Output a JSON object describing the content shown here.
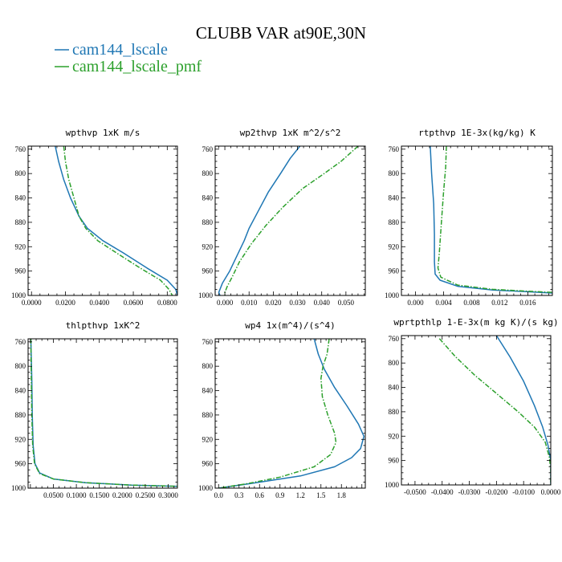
{
  "figure": {
    "title": "CLUBB VAR at90E,30N",
    "legend": [
      {
        "label": "cam144_lscale",
        "color": "#1f77b4",
        "dash": "solid"
      },
      {
        "label": "cam144_lscale_pmf",
        "color": "#2ca02c",
        "dash": "dashdot"
      }
    ]
  },
  "chart_data": [
    {
      "type": "line",
      "title": "wpthvp  1xK m/s",
      "xlim": [
        -0.002,
        0.086
      ],
      "ylim": [
        1000,
        755
      ],
      "y_reversed": true,
      "xticks": [
        0,
        0.02,
        0.04,
        0.06,
        0.08
      ],
      "xtick_labels": [
        "0.0000",
        "0.0200",
        "0.0400",
        "0.0600",
        "0.0800"
      ],
      "yticks": [
        760,
        800,
        840,
        880,
        920,
        960,
        1000
      ],
      "series": [
        {
          "name": "cam144_lscale",
          "points": [
            [
              0.014,
              755
            ],
            [
              0.016,
              780
            ],
            [
              0.019,
              810
            ],
            [
              0.023,
              840
            ],
            [
              0.028,
              870
            ],
            [
              0.033,
              890
            ],
            [
              0.042,
              910
            ],
            [
              0.054,
              930
            ],
            [
              0.068,
              955
            ],
            [
              0.08,
              975
            ],
            [
              0.085,
              990
            ],
            [
              0.086,
              1000
            ]
          ]
        },
        {
          "name": "cam144_lscale_pmf",
          "points": [
            [
              0.019,
              755
            ],
            [
              0.02,
              780
            ],
            [
              0.022,
              810
            ],
            [
              0.025,
              840
            ],
            [
              0.028,
              870
            ],
            [
              0.032,
              890
            ],
            [
              0.039,
              910
            ],
            [
              0.05,
              930
            ],
            [
              0.064,
              955
            ],
            [
              0.076,
              975
            ],
            [
              0.081,
              990
            ],
            [
              0.083,
              1000
            ]
          ]
        }
      ]
    },
    {
      "type": "line",
      "title": "wp2thvp  1xK m^2/s^2",
      "xlim": [
        -0.004,
        0.058
      ],
      "ylim": [
        1000,
        755
      ],
      "y_reversed": true,
      "xticks": [
        0,
        0.01,
        0.02,
        0.03,
        0.04,
        0.05
      ],
      "xtick_labels": [
        "0.000",
        "0.010",
        "0.020",
        "0.030",
        "0.040",
        "0.050"
      ],
      "yticks": [
        760,
        800,
        840,
        880,
        920,
        960,
        1000
      ],
      "series": [
        {
          "name": "cam144_lscale",
          "points": [
            [
              0.031,
              755
            ],
            [
              0.027,
              775
            ],
            [
              0.023,
              800
            ],
            [
              0.018,
              830
            ],
            [
              0.014,
              860
            ],
            [
              0.01,
              890
            ],
            [
              0.008,
              910
            ],
            [
              0.005,
              935
            ],
            [
              0.002,
              960
            ],
            [
              -0.001,
              980
            ],
            [
              -0.0025,
              995
            ],
            [
              -0.002,
              1000
            ]
          ]
        },
        {
          "name": "cam144_lscale_pmf",
          "points": [
            [
              0.055,
              755
            ],
            [
              0.048,
              780
            ],
            [
              0.041,
              800
            ],
            [
              0.032,
              825
            ],
            [
              0.024,
              855
            ],
            [
              0.017,
              885
            ],
            [
              0.011,
              915
            ],
            [
              0.006,
              945
            ],
            [
              0.003,
              970
            ],
            [
              0.001,
              985
            ],
            [
              0.0,
              995
            ],
            [
              0.0,
              1000
            ]
          ]
        }
      ]
    },
    {
      "type": "line",
      "title": "rtpthvp  1E-3x(kg/kg) K",
      "xlim": [
        -0.002,
        0.0195
      ],
      "ylim": [
        1000,
        755
      ],
      "y_reversed": true,
      "xticks": [
        0,
        0.004,
        0.008,
        0.012,
        0.016
      ],
      "xtick_labels": [
        "0.000",
        "0.004",
        "0.008",
        "0.012",
        "0.016"
      ],
      "yticks": [
        760,
        800,
        840,
        880,
        920,
        960,
        1000
      ],
      "series": [
        {
          "name": "cam144_lscale",
          "points": [
            [
              0.0021,
              755
            ],
            [
              0.0023,
              800
            ],
            [
              0.0026,
              850
            ],
            [
              0.0027,
              900
            ],
            [
              0.0027,
              945
            ],
            [
              0.0028,
              965
            ],
            [
              0.0035,
              975
            ],
            [
              0.006,
              985
            ],
            [
              0.011,
              991
            ],
            [
              0.016,
              994
            ],
            [
              0.0195,
              996
            ]
          ]
        },
        {
          "name": "cam144_lscale_pmf",
          "points": [
            [
              0.0044,
              755
            ],
            [
              0.0043,
              790
            ],
            [
              0.004,
              830
            ],
            [
              0.0037,
              880
            ],
            [
              0.0034,
              930
            ],
            [
              0.0032,
              955
            ],
            [
              0.0036,
              970
            ],
            [
              0.006,
              983
            ],
            [
              0.011,
              990
            ],
            [
              0.016,
              993
            ],
            [
              0.0195,
              995
            ]
          ]
        }
      ]
    },
    {
      "type": "line",
      "title": "thlpthvp  1xK^2",
      "xlim": [
        -0.005,
        0.32
      ],
      "ylim": [
        1000,
        755
      ],
      "y_reversed": true,
      "xticks": [
        0.05,
        0.1,
        0.15,
        0.2,
        0.25,
        0.3
      ],
      "xtick_labels": [
        "0.0500",
        "0.1000",
        "0.1500",
        "0.2000",
        "0.2500",
        "0.3000"
      ],
      "yticks": [
        760,
        800,
        840,
        880,
        920,
        960,
        1000
      ],
      "series": [
        {
          "name": "cam144_lscale",
          "points": [
            [
              0.001,
              755
            ],
            [
              0.003,
              820
            ],
            [
              0.004,
              880
            ],
            [
              0.006,
              930
            ],
            [
              0.01,
              960
            ],
            [
              0.02,
              975
            ],
            [
              0.05,
              985
            ],
            [
              0.12,
              991
            ],
            [
              0.22,
              995
            ],
            [
              0.32,
              997
            ]
          ]
        },
        {
          "name": "cam144_lscale_pmf",
          "points": [
            [
              0.001,
              755
            ],
            [
              0.002,
              820
            ],
            [
              0.003,
              880
            ],
            [
              0.005,
              930
            ],
            [
              0.009,
              960
            ],
            [
              0.02,
              976
            ],
            [
              0.05,
              985
            ],
            [
              0.12,
              991
            ],
            [
              0.22,
              995
            ],
            [
              0.32,
              997
            ]
          ]
        }
      ]
    },
    {
      "type": "line",
      "title": "wp4  1x(m^4)/(s^4)",
      "xlim": [
        -0.05,
        2.15
      ],
      "ylim": [
        1000,
        755
      ],
      "y_reversed": true,
      "xticks": [
        0,
        0.3,
        0.6,
        0.9,
        1.2,
        1.5,
        1.8
      ],
      "xtick_labels": [
        "0.0",
        "0.3",
        "0.6",
        "0.9",
        "1.2",
        "1.5",
        "1.8"
      ],
      "yticks": [
        760,
        800,
        840,
        880,
        920,
        960,
        1000
      ],
      "series": [
        {
          "name": "cam144_lscale",
          "points": [
            [
              1.4,
              755
            ],
            [
              1.46,
              780
            ],
            [
              1.55,
              805
            ],
            [
              1.7,
              835
            ],
            [
              1.88,
              865
            ],
            [
              2.05,
              895
            ],
            [
              2.13,
              915
            ],
            [
              2.08,
              935
            ],
            [
              1.95,
              950
            ],
            [
              1.7,
              965
            ],
            [
              1.2,
              980
            ],
            [
              0.5,
              992
            ],
            [
              0.0,
              1000
            ]
          ]
        },
        {
          "name": "cam144_lscale_pmf",
          "points": [
            [
              1.62,
              755
            ],
            [
              1.59,
              780
            ],
            [
              1.53,
              800
            ],
            [
              1.5,
              820
            ],
            [
              1.52,
              850
            ],
            [
              1.6,
              880
            ],
            [
              1.7,
              910
            ],
            [
              1.72,
              925
            ],
            [
              1.64,
              945
            ],
            [
              1.4,
              965
            ],
            [
              0.9,
              982
            ],
            [
              0.4,
              993
            ],
            [
              0.0,
              1000
            ]
          ]
        }
      ]
    },
    {
      "type": "line",
      "title": "wprtpthlp  1-E-3x(m kg K)/(s kg)",
      "xlim": [
        -0.055,
        0.0
      ],
      "ylim": [
        1000,
        755
      ],
      "y_reversed": true,
      "xticks": [
        -0.05,
        -0.04,
        -0.03,
        -0.02,
        -0.01,
        0.0
      ],
      "xtick_labels": [
        "-0.0500",
        "-0.0400",
        "-0.0300",
        "-0.0200",
        "-0.0100",
        "0.0000"
      ],
      "yticks": [
        760,
        800,
        840,
        880,
        920,
        960,
        1000
      ],
      "series": [
        {
          "name": "cam144_lscale",
          "points": [
            [
              -0.02,
              755
            ],
            [
              -0.015,
              790
            ],
            [
              -0.01,
              830
            ],
            [
              -0.006,
              870
            ],
            [
              -0.003,
              905
            ],
            [
              -0.001,
              935
            ],
            [
              0.0,
              960
            ],
            [
              0.0,
              1000
            ]
          ]
        },
        {
          "name": "cam144_lscale_pmf",
          "points": [
            [
              -0.041,
              760
            ],
            [
              -0.035,
              790
            ],
            [
              -0.028,
              820
            ],
            [
              -0.02,
              850
            ],
            [
              -0.012,
              880
            ],
            [
              -0.006,
              905
            ],
            [
              -0.002,
              930
            ],
            [
              -0.0005,
              955
            ],
            [
              0.0,
              975
            ],
            [
              0.0,
              1000
            ]
          ]
        }
      ]
    }
  ]
}
